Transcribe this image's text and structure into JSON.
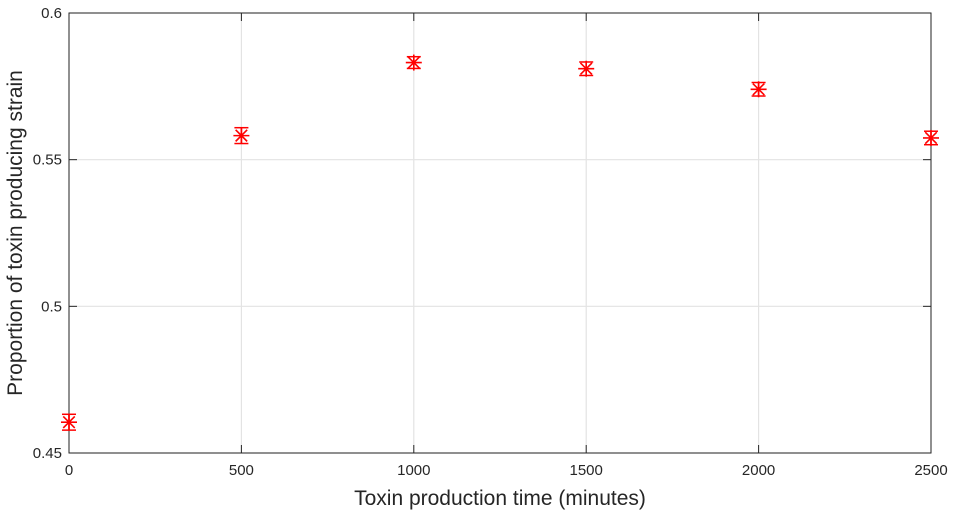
{
  "chart_data": {
    "type": "scatter",
    "xlabel": "Toxin production time (minutes)",
    "ylabel": "Proportion of toxin producing strain",
    "xlim": [
      0,
      2500
    ],
    "ylim": [
      0.45,
      0.6
    ],
    "x_ticks": [
      0,
      500,
      1000,
      1500,
      2000,
      2500
    ],
    "x_tick_labels": [
      "0",
      "500",
      "1000",
      "1500",
      "2000",
      "2500"
    ],
    "y_ticks": [
      0.45,
      0.5,
      0.55,
      0.6
    ],
    "y_tick_labels": [
      "0.45",
      "0.5",
      "0.55",
      "0.6"
    ],
    "grid": true,
    "marker": "asterisk",
    "error_bars": true,
    "color": "#ff0000",
    "series": [
      {
        "x": [
          0,
          500,
          1000,
          1500,
          2000,
          2500
        ],
        "y": [
          0.4605,
          0.5582,
          0.5831,
          0.581,
          0.574,
          0.5574
        ],
        "error": [
          0.0027,
          0.0027,
          0.002,
          0.0023,
          0.0023,
          0.0023
        ]
      }
    ]
  }
}
